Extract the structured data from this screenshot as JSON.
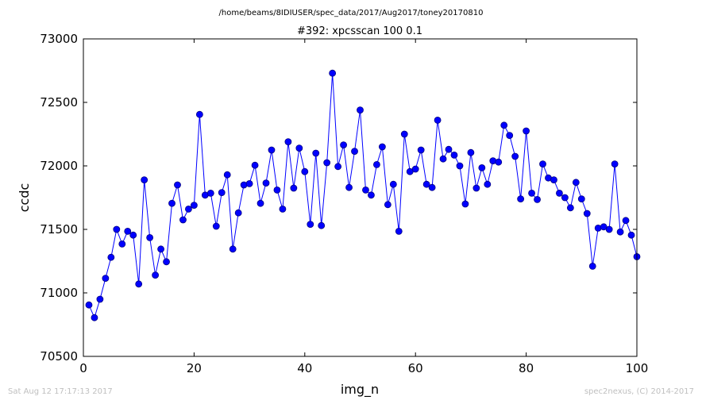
{
  "path_title": "/home/beams/8IDIUSER/spec_data/2017/Aug2017/toney20170810",
  "footer": {
    "timestamp": "Sat Aug 12 17:17:13 2017",
    "credit": "spec2nexus, (C) 2014-2017"
  },
  "colors": {
    "line": "#0000ff",
    "marker_fill": "#0000ff",
    "marker_edge": "#000080",
    "axes": "#000000"
  },
  "chart_data": {
    "type": "line",
    "title": "#392: xpcsscan 100 0.1",
    "xlabel": "img_n",
    "ylabel": "ccdc",
    "xlim": [
      0,
      100
    ],
    "ylim": [
      70500,
      73000
    ],
    "xticks": [
      0,
      20,
      40,
      60,
      80,
      100
    ],
    "yticks": [
      70500,
      71000,
      71500,
      72000,
      72500,
      73000
    ],
    "grid": false,
    "legend": "none",
    "x": [
      1,
      2,
      3,
      4,
      5,
      6,
      7,
      8,
      9,
      10,
      11,
      12,
      13,
      14,
      15,
      16,
      17,
      18,
      19,
      20,
      21,
      22,
      23,
      24,
      25,
      26,
      27,
      28,
      29,
      30,
      31,
      32,
      33,
      34,
      35,
      36,
      37,
      38,
      39,
      40,
      41,
      42,
      43,
      44,
      45,
      46,
      47,
      48,
      49,
      50,
      51,
      52,
      53,
      54,
      55,
      56,
      57,
      58,
      59,
      60,
      61,
      62,
      63,
      64,
      65,
      66,
      67,
      68,
      69,
      70,
      71,
      72,
      73,
      74,
      75,
      76,
      77,
      78,
      79,
      80,
      81,
      82,
      83,
      84,
      85,
      86,
      87,
      88,
      89,
      90,
      91,
      92,
      93,
      94,
      95,
      96,
      97,
      98,
      99,
      100
    ],
    "y": [
      70905,
      70805,
      70950,
      71115,
      71280,
      71500,
      71385,
      71485,
      71455,
      71070,
      71890,
      71435,
      71140,
      71345,
      71245,
      71705,
      71850,
      71575,
      71660,
      71690,
      72405,
      71770,
      71785,
      71525,
      71790,
      71930,
      71345,
      71630,
      71850,
      71860,
      72005,
      71705,
      71865,
      72125,
      71810,
      71660,
      72190,
      71825,
      72140,
      71955,
      71540,
      72100,
      71530,
      72025,
      72730,
      71995,
      72165,
      71830,
      72115,
      72440,
      71810,
      71770,
      72010,
      72150,
      71695,
      71855,
      71485,
      72250,
      71955,
      71975,
      72125,
      71855,
      71830,
      72360,
      72055,
      72130,
      72085,
      72000,
      71700,
      72105,
      71825,
      71985,
      71855,
      72040,
      72030,
      72320,
      72240,
      72075,
      71740,
      72275,
      71785,
      71735,
      72015,
      71905,
      71890,
      71785,
      71750,
      71670,
      71870,
      71740,
      71625,
      71210,
      71510,
      71520,
      71500,
      72015,
      71480,
      71570,
      71455,
      71285
    ]
  }
}
